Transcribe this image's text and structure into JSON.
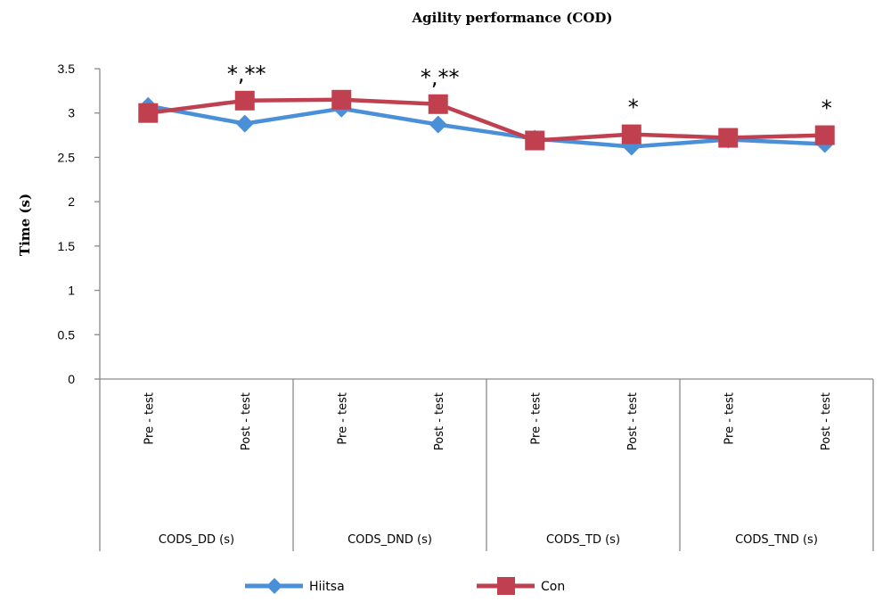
{
  "chart_data": {
    "type": "line",
    "title": "Agility performance (COD)",
    "ylabel": "Time (s)",
    "xlabel": "",
    "ylim": [
      0,
      3.5
    ],
    "yticks": [
      "0",
      "0.5",
      "1",
      "1.5",
      "2",
      "2.5",
      "3",
      "3.5"
    ],
    "grid": false,
    "legend_position": "bottom",
    "groups": [
      {
        "label": "CODS_DD (s)",
        "categories": [
          "Pre - test",
          "Post - test"
        ]
      },
      {
        "label": "CODS_DND (s)",
        "categories": [
          "Pre - test",
          "Post - test"
        ]
      },
      {
        "label": "CODS_TD (s)",
        "categories": [
          "Pre - test",
          "Post - test"
        ]
      },
      {
        "label": "CODS_TND (s)",
        "categories": [
          "Pre - test",
          "Post - test"
        ]
      }
    ],
    "categories": [
      "Pre - test",
      "Post - test",
      "Pre - test",
      "Post - test",
      "Pre - test",
      "Post - test",
      "Pre - test",
      "Post - test"
    ],
    "series": [
      {
        "name": "Hiitsa",
        "color": "#4a90d9",
        "marker": "diamond",
        "values": [
          3.08,
          2.88,
          3.05,
          2.87,
          2.71,
          2.62,
          2.7,
          2.65
        ]
      },
      {
        "name": "Con",
        "color": "#c0404f",
        "marker": "square",
        "values": [
          3.0,
          3.14,
          3.15,
          3.1,
          2.69,
          2.76,
          2.72,
          2.75
        ]
      }
    ],
    "annotations": [
      {
        "category_index": 1,
        "text": "*,**"
      },
      {
        "category_index": 3,
        "text": "*,**"
      },
      {
        "category_index": 5,
        "text": "*"
      },
      {
        "category_index": 7,
        "text": "*"
      }
    ]
  }
}
